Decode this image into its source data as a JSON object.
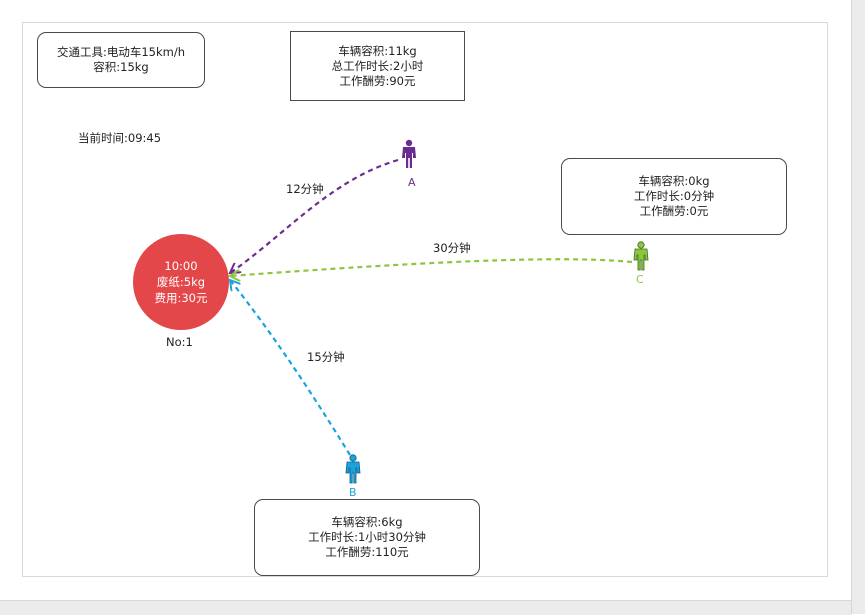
{
  "transport_box": {
    "line1": "交通工具:电动车15km/h",
    "line2": "容积:15kg"
  },
  "current_time": "当前时间:09:45",
  "depot": {
    "time": "10:00",
    "waste": "废纸:5kg",
    "fee": "费用:30元",
    "number": "No:1"
  },
  "workers": {
    "A": {
      "label": "A",
      "color": "#6a2c91",
      "route_time": "12分钟",
      "stats": [
        "车辆容积:11kg",
        "总工作时长:2小时",
        "工作酬劳:90元"
      ]
    },
    "B": {
      "label": "B",
      "color": "#1aa3dc",
      "route_time": "15分钟",
      "stats": [
        "车辆容积:6kg",
        "工作时长:1小时30分钟",
        "工作酬劳:110元"
      ]
    },
    "C": {
      "label": "C",
      "color": "#8cc63f",
      "route_time": "30分钟",
      "stats": [
        "车辆容积:0kg",
        "工作时长:0分钟",
        "工作酬劳:0元"
      ]
    }
  },
  "icons": {
    "worker": "person-icon"
  }
}
